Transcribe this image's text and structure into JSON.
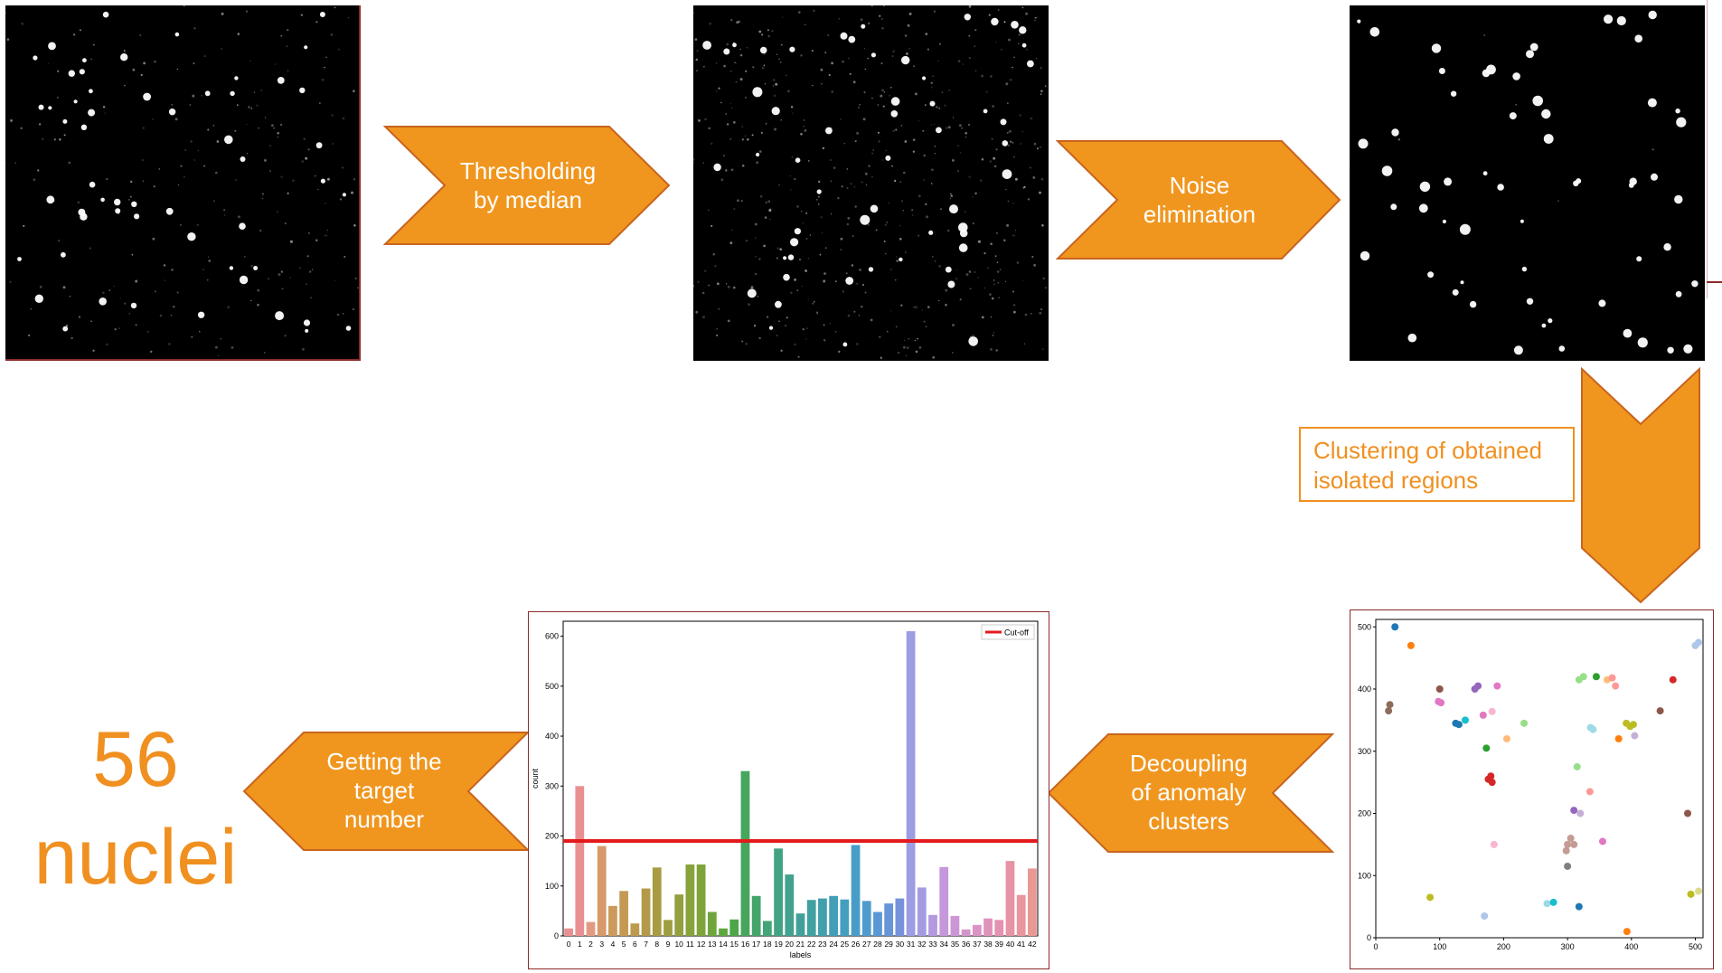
{
  "steps": {
    "threshold": {
      "line1": "Thresholding",
      "line2": "by median"
    },
    "noise": {
      "line1": "Noise",
      "line2": "elimination"
    },
    "clustering": {
      "line1": "Clustering of obtained",
      "line2": "isolated regions"
    },
    "decoupling": {
      "line1": "Decoupling",
      "line2": "of anomaly",
      "line3": "clusters"
    },
    "target": {
      "line1": "Getting the",
      "line2": "target",
      "line3": "number"
    }
  },
  "result": {
    "count": "56",
    "unit": "nuclei"
  },
  "colors": {
    "arrow_fill": "#f0961e",
    "arrow_stroke": "#c8641e",
    "accent_text": "#f09020",
    "cutoff": "#e31a1c"
  },
  "chart_data": [
    {
      "type": "scatter",
      "title": "",
      "xlim": [
        0,
        512
      ],
      "ylim": [
        0,
        512
      ],
      "xticks": [
        "0",
        "100",
        "200",
        "300",
        "400",
        "500"
      ],
      "yticks": [
        "0",
        "100",
        "200",
        "300",
        "400",
        "500"
      ],
      "points": [
        {
          "x": 30,
          "y": 500,
          "c": "#1f77b4"
        },
        {
          "x": 55,
          "y": 470,
          "c": "#ff7f0e"
        },
        {
          "x": 22,
          "y": 375,
          "c": "#8c6d5b"
        },
        {
          "x": 20,
          "y": 365,
          "c": "#8c6d5b"
        },
        {
          "x": 100,
          "y": 400,
          "c": "#8c564b"
        },
        {
          "x": 98,
          "y": 380,
          "c": "#e377c2"
        },
        {
          "x": 102,
          "y": 378,
          "c": "#e377c2"
        },
        {
          "x": 125,
          "y": 345,
          "c": "#1f77b4"
        },
        {
          "x": 130,
          "y": 343,
          "c": "#1f77b4"
        },
        {
          "x": 140,
          "y": 350,
          "c": "#17becf"
        },
        {
          "x": 155,
          "y": 400,
          "c": "#9467bd"
        },
        {
          "x": 160,
          "y": 405,
          "c": "#9467bd"
        },
        {
          "x": 168,
          "y": 358,
          "c": "#e377c2"
        },
        {
          "x": 190,
          "y": 405,
          "c": "#e377c2"
        },
        {
          "x": 182,
          "y": 364,
          "c": "#f7b6d2"
        },
        {
          "x": 173,
          "y": 305,
          "c": "#2ca02c"
        },
        {
          "x": 180,
          "y": 260,
          "c": "#d62728"
        },
        {
          "x": 182,
          "y": 250,
          "c": "#d62728"
        },
        {
          "x": 176,
          "y": 255,
          "c": "#d62728"
        },
        {
          "x": 205,
          "y": 320,
          "c": "#ffbb78"
        },
        {
          "x": 232,
          "y": 345,
          "c": "#98df8a"
        },
        {
          "x": 318,
          "y": 415,
          "c": "#98df8a"
        },
        {
          "x": 325,
          "y": 420,
          "c": "#98df8a"
        },
        {
          "x": 345,
          "y": 420,
          "c": "#2ca02c"
        },
        {
          "x": 362,
          "y": 415,
          "c": "#ffbb78"
        },
        {
          "x": 370,
          "y": 418,
          "c": "#ff9896"
        },
        {
          "x": 375,
          "y": 405,
          "c": "#ff9896"
        },
        {
          "x": 340,
          "y": 335,
          "c": "#9edae5"
        },
        {
          "x": 336,
          "y": 338,
          "c": "#9edae5"
        },
        {
          "x": 380,
          "y": 320,
          "c": "#ff7f0e"
        },
        {
          "x": 392,
          "y": 345,
          "c": "#bcbd22"
        },
        {
          "x": 398,
          "y": 340,
          "c": "#bcbd22"
        },
        {
          "x": 403,
          "y": 343,
          "c": "#bcbd22"
        },
        {
          "x": 405,
          "y": 325,
          "c": "#c5b0d5"
        },
        {
          "x": 465,
          "y": 415,
          "c": "#d62728"
        },
        {
          "x": 445,
          "y": 365,
          "c": "#8c564b"
        },
        {
          "x": 500,
          "y": 470,
          "c": "#aec7e8"
        },
        {
          "x": 505,
          "y": 475,
          "c": "#aec7e8"
        },
        {
          "x": 315,
          "y": 275,
          "c": "#98df8a"
        },
        {
          "x": 335,
          "y": 235,
          "c": "#ff9896"
        },
        {
          "x": 310,
          "y": 205,
          "c": "#9467bd"
        },
        {
          "x": 320,
          "y": 200,
          "c": "#c5b0d5"
        },
        {
          "x": 305,
          "y": 160,
          "c": "#c49c94"
        },
        {
          "x": 300,
          "y": 150,
          "c": "#c49c94"
        },
        {
          "x": 310,
          "y": 150,
          "c": "#c49c94"
        },
        {
          "x": 298,
          "y": 140,
          "c": "#c49c94"
        },
        {
          "x": 355,
          "y": 155,
          "c": "#e377c2"
        },
        {
          "x": 185,
          "y": 150,
          "c": "#f7b6d2"
        },
        {
          "x": 300,
          "y": 115,
          "c": "#7f7f7f"
        },
        {
          "x": 488,
          "y": 200,
          "c": "#8c564b"
        },
        {
          "x": 85,
          "y": 65,
          "c": "#bcbd22"
        },
        {
          "x": 170,
          "y": 35,
          "c": "#aec7e8"
        },
        {
          "x": 268,
          "y": 55,
          "c": "#9edae5"
        },
        {
          "x": 278,
          "y": 57,
          "c": "#17becf"
        },
        {
          "x": 318,
          "y": 50,
          "c": "#1f77b4"
        },
        {
          "x": 493,
          "y": 70,
          "c": "#bcbd22"
        },
        {
          "x": 505,
          "y": 75,
          "c": "#dbdb8d"
        },
        {
          "x": 393,
          "y": 10,
          "c": "#ff7f0e"
        }
      ]
    },
    {
      "type": "bar",
      "title": "",
      "xlabel": "labels",
      "ylabel": "count",
      "ylim": [
        0,
        630
      ],
      "yticks": [
        0,
        100,
        200,
        300,
        400,
        500,
        600
      ],
      "cutoff": 190,
      "legend": {
        "label": "Cut-off",
        "position": "top-right"
      },
      "categories": [
        "0",
        "1",
        "2",
        "3",
        "4",
        "5",
        "6",
        "7",
        "8",
        "9",
        "10",
        "11",
        "12",
        "13",
        "14",
        "15",
        "16",
        "17",
        "18",
        "19",
        "20",
        "21",
        "22",
        "23",
        "24",
        "25",
        "26",
        "27",
        "28",
        "29",
        "30",
        "31",
        "32",
        "33",
        "34",
        "35",
        "36",
        "37",
        "38",
        "39",
        "40",
        "41",
        "42"
      ],
      "values": [
        15,
        300,
        28,
        180,
        60,
        90,
        25,
        95,
        137,
        32,
        83,
        143,
        143,
        48,
        15,
        33,
        330,
        80,
        30,
        175,
        123,
        45,
        72,
        75,
        80,
        73,
        182,
        70,
        48,
        65,
        75,
        610,
        97,
        42,
        138,
        40,
        13,
        22,
        35,
        32,
        150,
        82,
        135
      ],
      "colors": [
        "#e98f91",
        "#e98f91",
        "#e39a80",
        "#d89a6a",
        "#cc9a5a",
        "#c49a52",
        "#bc9a4e",
        "#b49a48",
        "#a89c42",
        "#9e9e40",
        "#93a03e",
        "#88a23c",
        "#7da43a",
        "#6fa53c",
        "#5ea640",
        "#4da647",
        "#45a65c",
        "#44a56a",
        "#43a478",
        "#42a384",
        "#42a28e",
        "#41a198",
        "#41a0a2",
        "#41a0ac",
        "#429fb6",
        "#449ebe",
        "#489dc6",
        "#4f9bce",
        "#5998d4",
        "#6695d8",
        "#7592db",
        "#9c9de2",
        "#a49be0",
        "#b399df",
        "#c498db",
        "#cc96d5",
        "#d494cd",
        "#da93c4",
        "#df92ba",
        "#e392b0",
        "#e693a6",
        "#e8959d",
        "#e99894"
      ]
    }
  ]
}
